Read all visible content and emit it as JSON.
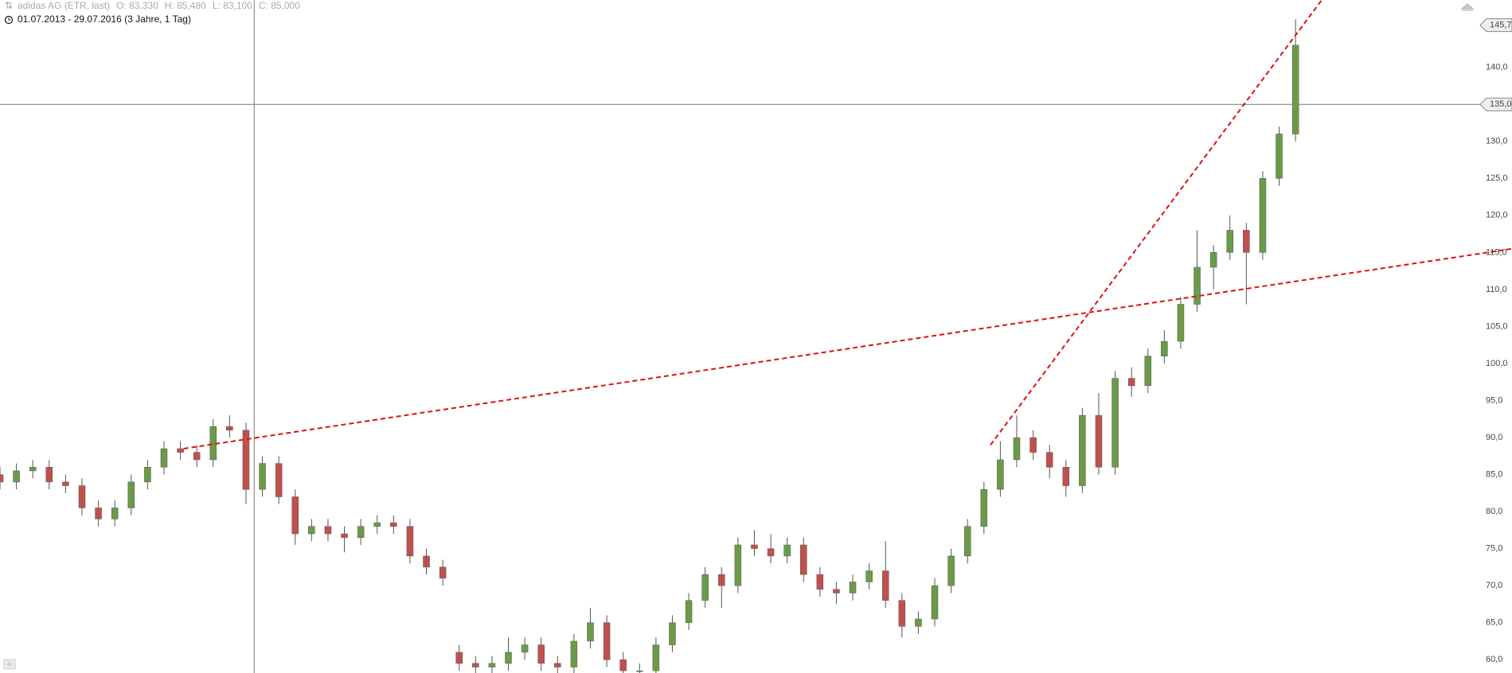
{
  "chart_data": {
    "type": "candlestick",
    "title": "adidas AG (ETR, last)",
    "info": [
      "O: 83,330",
      "H: 85,480",
      "L: 83,100",
      "C: 85,000"
    ],
    "subtitle": "01.07.2013 - 29.07.2016 (3 Jahre, 1 Tag)",
    "up_color": "#6b9a49",
    "down_color": "#c0504d",
    "wick_color": "#555555",
    "xlim": [
      0,
      92.2
    ],
    "ylim": [
      58.2,
      149.1
    ],
    "yticks": [
      {
        "value": 60,
        "label": "60,0"
      },
      {
        "value": 65,
        "label": "65,0"
      },
      {
        "value": 70,
        "label": "70,0"
      },
      {
        "value": 75,
        "label": "75,0"
      },
      {
        "value": 80,
        "label": "80,0"
      },
      {
        "value": 85,
        "label": "85,0"
      },
      {
        "value": 90,
        "label": "90,0"
      },
      {
        "value": 95,
        "label": "95,0"
      },
      {
        "value": 100,
        "label": "100,0"
      },
      {
        "value": 105,
        "label": "105,0"
      },
      {
        "value": 110,
        "label": "110,0"
      },
      {
        "value": 115,
        "label": "115,0"
      },
      {
        "value": 120,
        "label": "120,0"
      },
      {
        "value": 125,
        "label": "125,0"
      },
      {
        "value": 130,
        "label": "130,0"
      },
      {
        "value": 140,
        "label": "140,0"
      }
    ],
    "price_tags": [
      {
        "value": 145.7,
        "label": "145,7"
      },
      {
        "value": 135,
        "label": "135,0"
      }
    ],
    "crosshair": {
      "x": 15.5,
      "y": 135
    },
    "trendline_color": "#e01010",
    "trendlines": [
      {
        "x": [
          11.2,
          92.2
        ],
        "y": [
          88.5,
          115.5
        ]
      },
      {
        "x": [
          60.4,
          80.6
        ],
        "y": [
          89,
          149.1
        ]
      }
    ],
    "open": [
      85,
      84,
      85.5,
      86,
      84,
      83.5,
      80.5,
      79,
      80.5,
      84,
      86,
      88.5,
      88,
      87,
      91.5,
      91,
      83,
      86.5,
      82,
      77,
      78,
      77,
      76.5,
      78,
      78.5,
      78,
      74,
      72.5,
      61,
      59.5,
      59,
      59.5,
      61,
      62,
      59.5,
      59,
      62.5,
      65,
      60,
      58.5,
      58.5,
      62,
      65,
      68,
      71.5,
      70,
      75.5,
      75,
      74,
      75.5,
      71.5,
      69.5,
      69,
      70.5,
      72,
      68,
      64.5,
      65.5,
      70,
      74,
      78,
      83,
      87,
      90,
      88,
      86,
      83.5,
      93,
      86,
      98,
      97,
      101,
      103,
      108,
      113,
      115,
      118,
      115,
      125,
      131
    ],
    "high": [
      86,
      86.5,
      87,
      87,
      85,
      84.5,
      81.5,
      81.5,
      85,
      87,
      89.5,
      89.5,
      89,
      92.5,
      93,
      92,
      87.5,
      87.5,
      83,
      79,
      79,
      78,
      79,
      79.5,
      79.5,
      79,
      75,
      73.5,
      62,
      60.5,
      60.5,
      63,
      63,
      63,
      60.5,
      63.5,
      67,
      66,
      61,
      59.5,
      63,
      66,
      69,
      72.5,
      72.5,
      76.5,
      77.5,
      77,
      76.5,
      76.5,
      72.5,
      70.5,
      71.5,
      73,
      76,
      69,
      66.5,
      71,
      75,
      79,
      84,
      89.5,
      93,
      91,
      89,
      87,
      94,
      96,
      99,
      99.5,
      102,
      104.5,
      109,
      118,
      116,
      120,
      119,
      126,
      132,
      146.5
    ],
    "low": [
      83,
      83,
      84.5,
      83,
      82.5,
      79.5,
      78,
      78,
      79.5,
      83,
      85,
      87,
      86,
      86,
      90,
      81,
      82,
      81,
      75.5,
      76,
      76,
      74.5,
      75.5,
      77,
      77,
      73,
      71.5,
      70,
      58.5,
      58,
      58,
      58.5,
      60,
      58.5,
      58,
      58,
      61.5,
      59,
      57.5,
      57.5,
      57.5,
      61,
      64,
      67,
      67,
      69,
      74,
      73,
      73,
      70.5,
      68.5,
      67.5,
      68,
      69.5,
      67,
      63,
      63.5,
      64.5,
      69,
      73,
      77,
      82,
      86,
      87,
      84.5,
      82,
      82.5,
      85,
      85,
      95.5,
      96,
      100,
      102,
      107,
      110,
      114,
      108,
      114,
      124,
      130
    ],
    "close": [
      84,
      85.5,
      86,
      84,
      83.5,
      80.5,
      79,
      80.5,
      84,
      86,
      88.5,
      88,
      87,
      91.5,
      91,
      83,
      86.5,
      82,
      77,
      78,
      77,
      76.5,
      78,
      78.5,
      78,
      74,
      72.5,
      71,
      59.5,
      59,
      59.5,
      61,
      62,
      59.5,
      59,
      62.5,
      65,
      60,
      58.5,
      58.5,
      62,
      65,
      68,
      71.5,
      70,
      75.5,
      75,
      74,
      75.5,
      71.5,
      69.5,
      69,
      70.5,
      72,
      68,
      64.5,
      65.5,
      70,
      74,
      78,
      83,
      87,
      90,
      88,
      86,
      83.5,
      93,
      86,
      98,
      97,
      101,
      103,
      108,
      113,
      115,
      118,
      115,
      125,
      131,
      143
    ]
  }
}
